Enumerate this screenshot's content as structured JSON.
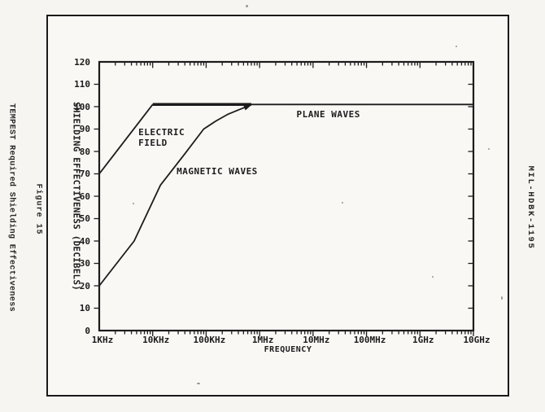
{
  "page": {
    "figure_label": "Figure 15",
    "figure_title": "TEMPEST Required Shielding Effectiveness",
    "document_id": "MIL-HDBK-1195"
  },
  "chart_data": {
    "type": "line",
    "title": "",
    "xlabel": "FREQUENCY",
    "ylabel": "SHIELDING EFFECTIVENESS (DECIBELS)",
    "x_scale": "log",
    "xlim_hz": [
      1000,
      10000000000
    ],
    "ylim": [
      0,
      120
    ],
    "grid": false,
    "x_tick_labels": [
      "1KHz",
      "10KHz",
      "100KHz",
      "1MHz",
      "10MHz",
      "100MHz",
      "1GHz",
      "10GHz"
    ],
    "x_tick_hz": [
      1000,
      10000,
      100000,
      1000000,
      10000000,
      100000000,
      1000000000,
      10000000000
    ],
    "y_ticks": [
      0,
      10,
      20,
      30,
      40,
      50,
      60,
      70,
      80,
      90,
      100,
      110,
      120
    ],
    "series": [
      {
        "name": "ELECTRIC FIELD",
        "points": [
          [
            1000,
            70
          ],
          [
            10000,
            101
          ]
        ]
      },
      {
        "name": "MAGNETIC WAVES",
        "arrow_end": true,
        "points": [
          [
            1000,
            20
          ],
          [
            4500,
            40
          ],
          [
            14000,
            65
          ],
          [
            40000,
            79
          ],
          [
            90000,
            90
          ],
          [
            150000,
            93.5
          ],
          [
            250000,
            96.5
          ],
          [
            400000,
            98.5
          ],
          [
            650000,
            100.5
          ]
        ]
      },
      {
        "name": "PLANE WAVES",
        "thick_until_hz": 700000,
        "points": [
          [
            10000,
            101
          ],
          [
            10000000000,
            101
          ]
        ]
      }
    ],
    "annotations": [
      {
        "lines": [
          "ELECTRIC",
          "FIELD"
        ],
        "at_hz": 5400,
        "at_db": 91
      },
      {
        "lines": [
          "MAGNETIC WAVES"
        ],
        "at_hz": 28000,
        "at_db": 73.5
      },
      {
        "lines": [
          "PLANE WAVES"
        ],
        "at_hz": 4900000,
        "at_db": 99
      }
    ]
  }
}
